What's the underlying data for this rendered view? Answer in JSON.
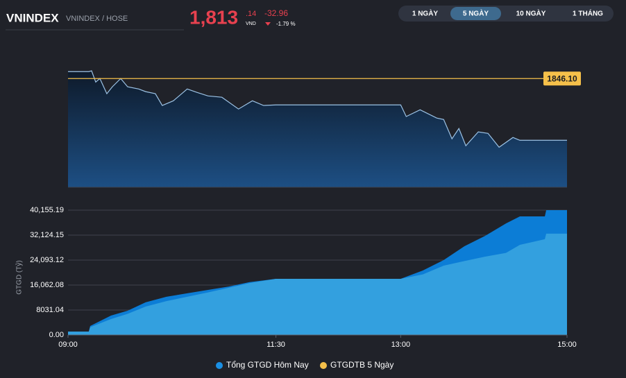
{
  "header": {
    "title": "VNINDEX",
    "subtitle": "VNINDEX / HOSE",
    "price": "1,813",
    "price_decimal": ".14",
    "unit": "VND",
    "change": "-32.96",
    "change_percent": "-1.79 %"
  },
  "tabs": {
    "items": [
      "1 NGÀY",
      "5 NGÀY",
      "10 NGÀY",
      "1 THÁNG"
    ],
    "active": 1
  },
  "chart_data": [
    {
      "type": "line",
      "x": [
        "09:00",
        "09:15",
        "09:17",
        "09:20",
        "09:23",
        "09:28",
        "09:32",
        "09:38",
        "09:43",
        "09:51",
        "09:56",
        "10:03",
        "10:08",
        "10:16",
        "10:26",
        "10:33",
        "10:41",
        "10:51",
        "11:03",
        "11:13",
        "11:21",
        "11:30",
        "13:00",
        "13:04",
        "13:14",
        "13:26",
        "13:31",
        "13:37",
        "13:42",
        "13:47",
        "13:56",
        "14:03",
        "14:11",
        "14:21",
        "14:26",
        "15:00"
      ],
      "values": [
        1849.8,
        1849.8,
        1850.2,
        1844.2,
        1846.1,
        1838.0,
        1841.7,
        1846.1,
        1841.7,
        1840.5,
        1839.1,
        1838.0,
        1831.7,
        1834.2,
        1840.5,
        1838.7,
        1836.8,
        1836.1,
        1829.8,
        1834.2,
        1831.7,
        1832.0,
        1832.0,
        1825.8,
        1829.4,
        1825.0,
        1824.2,
        1813.9,
        1819.4,
        1810.2,
        1817.6,
        1816.8,
        1809.4,
        1814.6,
        1813.1,
        1813.1
      ],
      "color": "#9cc3e6",
      "xlim": [
        "09:00",
        "15:00"
      ],
      "ylim": [
        1788,
        1851
      ],
      "reference": {
        "value": 1846.1,
        "label": "1846.10",
        "color": "#f5c04a"
      }
    },
    {
      "type": "area",
      "x": [
        "09:00",
        "09:15",
        "09:16",
        "09:31",
        "09:43",
        "09:56",
        "10:11",
        "10:26",
        "10:41",
        "10:56",
        "11:11",
        "11:30",
        "13:00",
        "13:16",
        "13:31",
        "13:46",
        "14:01",
        "14:16",
        "14:26",
        "14:44",
        "14:45",
        "15:00"
      ],
      "series": [
        {
          "name": "Tổng GTGD Hôm Nay",
          "color": "#1a8fe3",
          "fill": "#0c7dd6",
          "values": [
            1100,
            1100,
            2900,
            6250,
            7800,
            10500,
            12300,
            13400,
            14500,
            15600,
            17000,
            18070,
            18070,
            20750,
            24100,
            28550,
            31900,
            35900,
            38150,
            38150,
            40155.19,
            40155.19
          ]
        },
        {
          "name": "GTGDTB 5 Ngày",
          "color": "#f5c04a",
          "fill": "#33a0df",
          "values": [
            1100,
            1100,
            2500,
            5130,
            6800,
            9150,
            10900,
            12300,
            13700,
            15200,
            16700,
            18070,
            18070,
            19500,
            22300,
            23800,
            25200,
            26400,
            29000,
            30800,
            32600,
            32600
          ]
        }
      ],
      "xlim": [
        "09:00",
        "15:00"
      ],
      "xticks": [
        "09:00",
        "11:30",
        "13:00",
        "15:00"
      ],
      "ylim": [
        0,
        40155.19
      ],
      "yticks": [
        {
          "value": 0,
          "label": "0.00"
        },
        8031.04,
        {
          "value": 16062.08,
          "label": "16,062.08"
        },
        {
          "value": 24093.12,
          "label": "24,093.12"
        },
        {
          "value": 32124.15,
          "label": "32,124.15"
        },
        {
          "value": 40155.19,
          "label": "40,155.19"
        }
      ],
      "y_label": "GTGD (Tỷ)",
      "grid": true
    }
  ]
}
